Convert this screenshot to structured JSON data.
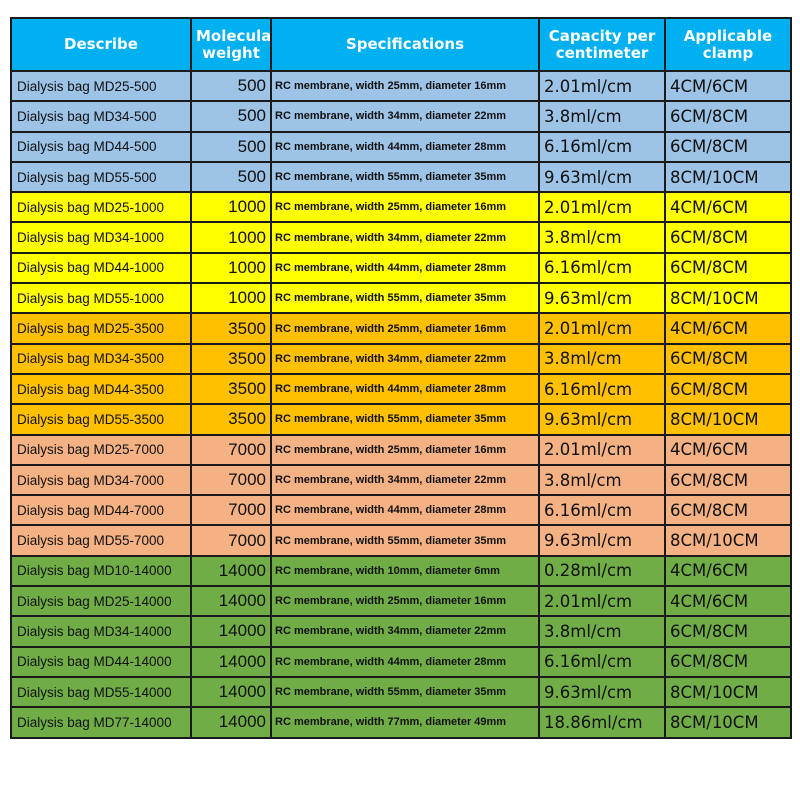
{
  "header": [
    "Describe",
    "Molecular weight",
    "Specifications",
    "Capacity per centimeter",
    "Applicable clamp"
  ],
  "group_colors": {
    "500": "#9dc3e6",
    "1000": "#ffff00",
    "3500": "#ffc000",
    "7000": "#f4b183",
    "14000": "#70ad47"
  },
  "header_color": "#00b0f0",
  "rows": [
    {
      "describe": "Dialysis bag MD25-500",
      "mw": "500",
      "spec": "RC membrane, width 25mm, diameter 16mm",
      "capacity": "2.01ml/cm",
      "clamp": "4CM/6CM"
    },
    {
      "describe": "Dialysis bag MD34-500",
      "mw": "500",
      "spec": "RC membrane, width 34mm, diameter 22mm",
      "capacity": "3.8ml/cm",
      "clamp": "6CM/8CM"
    },
    {
      "describe": "Dialysis bag MD44-500",
      "mw": "500",
      "spec": "RC membrane, width 44mm, diameter 28mm",
      "capacity": "6.16ml/cm",
      "clamp": "6CM/8CM"
    },
    {
      "describe": "Dialysis bag MD55-500",
      "mw": "500",
      "spec": "RC membrane, width 55mm, diameter 35mm",
      "capacity": "9.63ml/cm",
      "clamp": "8CM/10CM"
    },
    {
      "describe": "Dialysis bag MD25-1000",
      "mw": "1000",
      "spec": "RC membrane, width 25mm, diameter 16mm",
      "capacity": "2.01ml/cm",
      "clamp": "4CM/6CM"
    },
    {
      "describe": "Dialysis bag MD34-1000",
      "mw": "1000",
      "spec": "RC membrane, width 34mm, diameter 22mm",
      "capacity": "3.8ml/cm",
      "clamp": "6CM/8CM"
    },
    {
      "describe": "Dialysis bag MD44-1000",
      "mw": "1000",
      "spec": "RC membrane, width 44mm, diameter 28mm",
      "capacity": "6.16ml/cm",
      "clamp": "6CM/8CM"
    },
    {
      "describe": "Dialysis bag MD55-1000",
      "mw": "1000",
      "spec": "RC membrane, width 55mm, diameter 35mm",
      "capacity": "9.63ml/cm",
      "clamp": "8CM/10CM"
    },
    {
      "describe": "Dialysis bag MD25-3500",
      "mw": "3500",
      "spec": "RC membrane, width 25mm, diameter 16mm",
      "capacity": "2.01ml/cm",
      "clamp": "4CM/6CM"
    },
    {
      "describe": "Dialysis bag MD34-3500",
      "mw": "3500",
      "spec": "RC membrane, width 34mm, diameter 22mm",
      "capacity": "3.8ml/cm",
      "clamp": "6CM/8CM"
    },
    {
      "describe": "Dialysis bag MD44-3500",
      "mw": "3500",
      "spec": "RC membrane, width 44mm, diameter 28mm",
      "capacity": "6.16ml/cm",
      "clamp": "6CM/8CM"
    },
    {
      "describe": "Dialysis bag MD55-3500",
      "mw": "3500",
      "spec": "RC membrane, width 55mm, diameter 35mm",
      "capacity": "9.63ml/cm",
      "clamp": "8CM/10CM"
    },
    {
      "describe": "Dialysis bag MD25-7000",
      "mw": "7000",
      "spec": "RC membrane, width 25mm, diameter 16mm",
      "capacity": "2.01ml/cm",
      "clamp": "4CM/6CM"
    },
    {
      "describe": "Dialysis bag MD34-7000",
      "mw": "7000",
      "spec": "RC membrane, width 34mm, diameter 22mm",
      "capacity": "3.8ml/cm",
      "clamp": "6CM/8CM"
    },
    {
      "describe": "Dialysis bag MD44-7000",
      "mw": "7000",
      "spec": "RC membrane, width 44mm, diameter 28mm",
      "capacity": "6.16ml/cm",
      "clamp": "6CM/8CM"
    },
    {
      "describe": "Dialysis bag MD55-7000",
      "mw": "7000",
      "spec": "RC membrane, width 55mm, diameter 35mm",
      "capacity": "9.63ml/cm",
      "clamp": "8CM/10CM"
    },
    {
      "describe": "Dialysis bag MD10-14000",
      "mw": "14000",
      "spec": "RC membrane, width 10mm, diameter 6mm",
      "capacity": "0.28ml/cm",
      "clamp": "4CM/6CM"
    },
    {
      "describe": "Dialysis bag MD25-14000",
      "mw": "14000",
      "spec": "RC membrane, width 25mm, diameter 16mm",
      "capacity": "2.01ml/cm",
      "clamp": "4CM/6CM"
    },
    {
      "describe": "Dialysis bag MD34-14000",
      "mw": "14000",
      "spec": "RC membrane, width 34mm, diameter 22mm",
      "capacity": "3.8ml/cm",
      "clamp": "6CM/8CM"
    },
    {
      "describe": "Dialysis bag MD44-14000",
      "mw": "14000",
      "spec": "RC membrane, width 44mm, diameter 28mm",
      "capacity": "6.16ml/cm",
      "clamp": "6CM/8CM"
    },
    {
      "describe": "Dialysis bag MD55-14000",
      "mw": "14000",
      "spec": "RC membrane, width 55mm, diameter 35mm",
      "capacity": "9.63ml/cm",
      "clamp": "8CM/10CM"
    },
    {
      "describe": "Dialysis bag MD77-14000",
      "mw": "14000",
      "spec": "RC membrane, width 77mm, diameter 49mm",
      "capacity": "18.86ml/cm",
      "clamp": "8CM/10CM"
    }
  ]
}
